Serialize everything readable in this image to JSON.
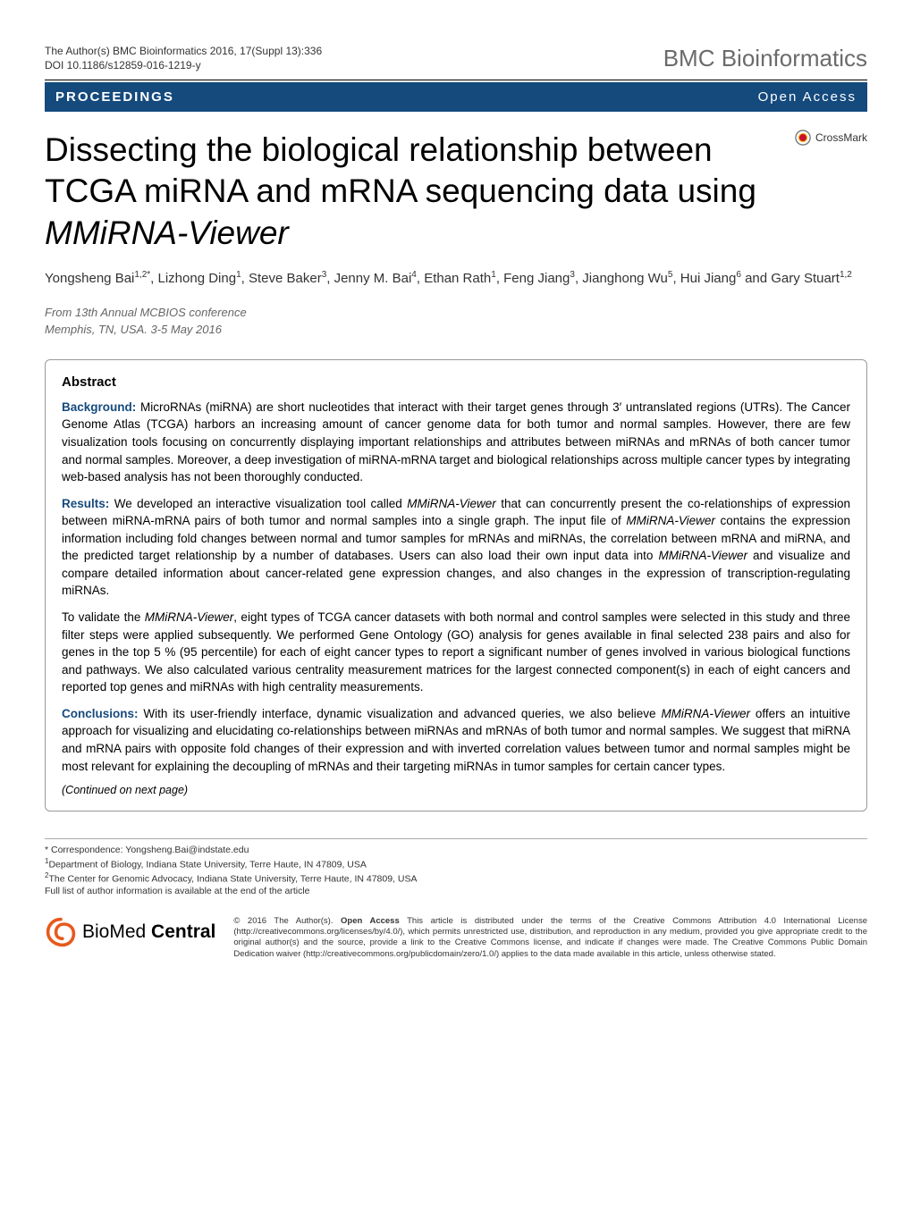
{
  "header": {
    "citation_line1": "The Author(s) BMC Bioinformatics 2016, 17(Suppl 13):336",
    "citation_line2": "DOI 10.1186/s12859-016-1219-y",
    "journal": "BMC Bioinformatics"
  },
  "banner": {
    "left": "PROCEEDINGS",
    "right": "Open Access"
  },
  "crossmark_label": "CrossMark",
  "title_pre": "Dissecting the biological relationship between TCGA miRNA and mRNA sequencing data using ",
  "title_em": "MMiRNA-Viewer",
  "authors_html": "Yongsheng Bai<sup>1,2*</sup>, Lizhong Ding<sup>1</sup>, Steve Baker<sup>3</sup>, Jenny M. Bai<sup>4</sup>, Ethan Rath<sup>1</sup>, Feng Jiang<sup>3</sup>, Jianghong Wu<sup>5</sup>, Hui Jiang<sup>6</sup> and Gary Stuart<sup>1,2</sup>",
  "conference": {
    "from": "From 13th Annual MCBIOS conference",
    "where": "Memphis, TN, USA. 3-5 May 2016"
  },
  "abstract": {
    "heading": "Abstract",
    "background_label": "Background:",
    "background_text": " MicroRNAs (miRNA) are short nucleotides that interact with their target genes through 3′ untranslated regions (UTRs). The Cancer Genome Atlas (TCGA) harbors an increasing amount of cancer genome data for both tumor and normal samples. However, there are few visualization tools focusing on concurrently displaying important relationships and attributes between miRNAs and mRNAs of both cancer tumor and normal samples. Moreover, a deep investigation of miRNA-mRNA target and biological relationships across multiple cancer types by integrating web-based analysis has not been thoroughly conducted.",
    "results_label": "Results:",
    "results_p1_pre": " We developed an interactive visualization tool called ",
    "results_p1_em1": "MMiRNA-Viewer",
    "results_p1_mid1": " that can concurrently present the co-relationships of expression between miRNA-mRNA pairs of both tumor and normal samples into a single graph. The input file of ",
    "results_p1_em2": "MMiRNA-Viewer",
    "results_p1_mid2": " contains the expression information including fold changes between normal and tumor samples for mRNAs and miRNAs, the correlation between mRNA and miRNA, and the predicted target relationship by a number of databases. Users can also load their own input data into ",
    "results_p1_em3": "MMiRNA-Viewer",
    "results_p1_post": " and visualize and compare detailed information about cancer-related gene expression changes, and also changes in the expression of transcription-regulating miRNAs.",
    "results_p2_pre": "To validate the ",
    "results_p2_em": "MMiRNA-Viewer",
    "results_p2_post": ", eight types of TCGA cancer datasets with both normal and control samples were selected in this study and three filter steps were applied subsequently. We performed Gene Ontology (GO) analysis for genes available in final selected 238 pairs and also for genes in the top 5 % (95 percentile) for each of eight cancer types to report a significant number of genes involved in various biological functions and pathways. We also calculated various centrality measurement matrices for the largest connected component(s) in each of eight cancers and reported top genes and miRNAs with high centrality measurements.",
    "conclusions_label": "Conclusions:",
    "conclusions_pre": " With its user-friendly interface, dynamic visualization and advanced queries, we also believe ",
    "conclusions_em": "MMiRNA-Viewer",
    "conclusions_post": " offers an intuitive approach for visualizing and elucidating co-relationships between miRNAs and mRNAs of both tumor and normal samples. We suggest that miRNA and mRNA pairs with opposite fold changes of their expression and with inverted correlation values between tumor and normal samples might be most relevant for explaining the decoupling of mRNAs and their targeting miRNAs in tumor samples for certain cancer types.",
    "continued": "(Continued on next page)"
  },
  "footer": {
    "correspondence": "* Correspondence: Yongsheng.Bai@indstate.edu",
    "aff1": "Department of Biology, Indiana State University, Terre Haute, IN 47809, USA",
    "aff2": "The Center for Genomic Advocacy, Indiana State University, Terre Haute, IN 47809, USA",
    "full_list": "Full list of author information is available at the end of the article"
  },
  "license": {
    "logo_text": "BioMed Central",
    "text": "© 2016 The Author(s). Open Access This article is distributed under the terms of the Creative Commons Attribution 4.0 International License (http://creativecommons.org/licenses/by/4.0/), which permits unrestricted use, distribution, and reproduction in any medium, provided you give appropriate credit to the original author(s) and the source, provide a link to the Creative Commons license, and indicate if changes were made. The Creative Commons Public Domain Dedication waiver (http://creativecommons.org/publicdomain/zero/1.0/) applies to the data made available in this article, unless otherwise stated."
  },
  "colors": {
    "banner_bg": "#154a7d",
    "abstract_label": "#154a7d",
    "journal_gray": "#6b6b6b"
  }
}
